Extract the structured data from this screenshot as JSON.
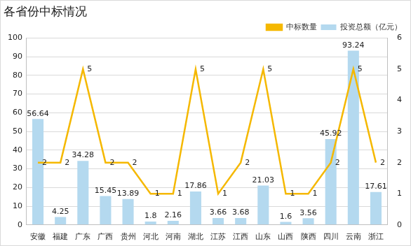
{
  "chart_data": {
    "type": "bar",
    "title": "各省份中标情况",
    "categories": [
      "安徽",
      "福建",
      "广东",
      "广西",
      "贵州",
      "河北",
      "河南",
      "湖北",
      "江苏",
      "江西",
      "山东",
      "山西",
      "陕西",
      "四川",
      "云南",
      "浙江"
    ],
    "series": [
      {
        "name": "投资总额（亿元）",
        "type": "bar",
        "color": "#b4d9ef",
        "values": [
          56.64,
          4.25,
          34.28,
          15.45,
          13.89,
          1.8,
          2.16,
          17.86,
          3.66,
          3.68,
          21.03,
          1.6,
          3.56,
          45.92,
          93.24,
          17.61
        ]
      },
      {
        "name": "中标数量",
        "type": "line",
        "color": "#f5b800",
        "axis": "y2",
        "marker": "none",
        "line_style": "solid",
        "values": [
          2,
          2,
          5,
          2,
          2,
          1,
          1,
          5,
          1,
          2,
          5,
          1,
          1,
          2,
          5,
          2
        ]
      }
    ],
    "ylim": [
      0,
      100
    ],
    "yticks": [
      0,
      10,
      20,
      30,
      40,
      50,
      60,
      70,
      80,
      90,
      100
    ],
    "y2lim": [
      0,
      6
    ],
    "y2ticks": [
      0,
      1,
      2,
      3,
      4,
      5,
      6
    ],
    "grid": true,
    "legend": "top right",
    "data_labels": true
  }
}
